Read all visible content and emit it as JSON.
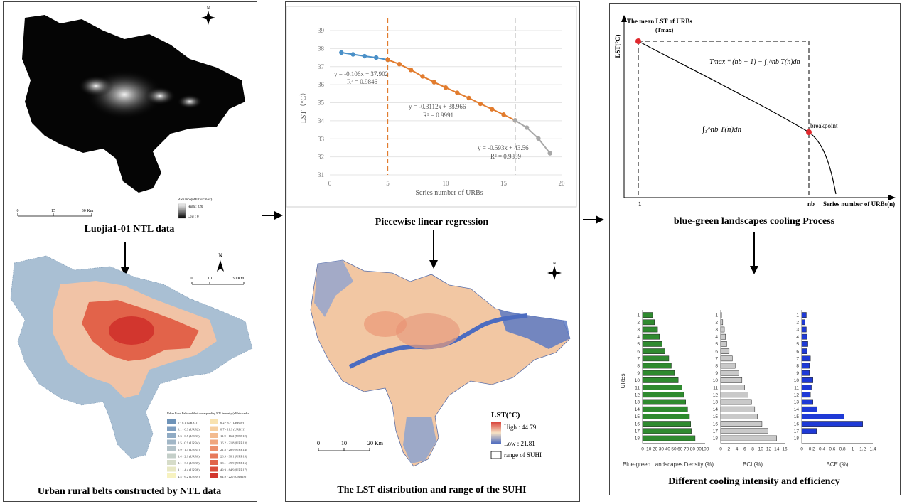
{
  "panel1": {
    "ntl_caption": "Luojia1-01 NTL data",
    "ntl_legend_title": "Radiance(nWatts/cm²sr)",
    "ntl_legend_high": "High : 220",
    "ntl_legend_low": "Low : 0",
    "ntl_scale_0": "0",
    "ntl_scale_1": "15",
    "ntl_scale_2": "30 Km",
    "belts_caption": "Urban rural belts constructed by NTL data",
    "belts_scale_0": "0",
    "belts_scale_1": "10",
    "belts_scale_2": "30 Km",
    "belts_legend_title": "Urban Rural Belts and their corresponding NTL intensity (nWatts/cm²sr)",
    "belts_legend_left": [
      "0 - 0.1 (URB1)",
      "0.1 - 0.3 (URB2)",
      "0.3 - 0.5 (URB3)",
      "0.5 - 0.9 (URB4)",
      "0.9 - 1.4 (URB5)",
      "1.4 - 2.1 (URB6)",
      "2.1 - 3.1 (URB7)",
      "3.1 - 4.4 (URB8)",
      "4.4 - 6.2 (URB9)"
    ],
    "belts_legend_right": [
      "6.2 - 8.7 (URB10)",
      "8.7 - 11.9 (URB11)",
      "11.9 - 16.2 (URB12)",
      "16.2 - 21.8 (URB13)",
      "21.8 - 28.9 (URB14)",
      "28.9 - 38.1 (URB15)",
      "38.1 - 49.9 (URB16)",
      "49.9 - 64.9 (URB17)",
      "64.9 - 220 (URB18)"
    ],
    "belts_legend_left_colors": [
      "#6e93b8",
      "#7f9fc0",
      "#90abc4",
      "#a1b6c6",
      "#b3c2c8",
      "#c4cfc9",
      "#d6dcc8",
      "#e8e8c4",
      "#f7f2c0"
    ],
    "belts_legend_right_colors": [
      "#f8e2b0",
      "#f6cfa0",
      "#f3bb8f",
      "#f0a67e",
      "#ec906c",
      "#e77a5b",
      "#e1634a",
      "#da4c3b",
      "#d2362e"
    ]
  },
  "panel2": {
    "regression_caption": "Piecewise linear regression",
    "lst_caption": "The LST distribution and range of the SUHI",
    "lst_legend_title": "LST(°C)",
    "lst_legend_high": "High : 44.79",
    "lst_legend_low": "Low : 21.81",
    "lst_legend_range": "range of SUHI",
    "lst_scale_0": "0",
    "lst_scale_1": "10",
    "lst_scale_2": "20 Km"
  },
  "panel3": {
    "process_caption": "blue-green landscapes cooling Process",
    "bars_caption": "Different cooling intensity and efficiency",
    "y_axis_title": "The mean LST of URBs",
    "y_axis_sub": "(Tmax)",
    "lst_axis_label": "LST(°C)",
    "x_axis_label": "Series number of URBs(n)",
    "x_tick_1": "1",
    "x_tick_nb": "nb",
    "breakpoint_label": "breakpoint",
    "formula_upper": "Tmax * (nb − 1) − ∫₁^nb T(n)dn",
    "formula_lower": "∫₁^nb T(n)dn"
  },
  "chart_data": [
    {
      "type": "scatter",
      "title": "",
      "xlabel": "Series number of URBs",
      "ylabel": "LST（°C）",
      "xlim": [
        0,
        20
      ],
      "ylim": [
        31,
        39
      ],
      "x_ticks": [
        0,
        5,
        10,
        15,
        20
      ],
      "y_ticks": [
        31,
        32,
        33,
        34,
        35,
        36,
        37,
        38,
        39
      ],
      "grid": true,
      "breakpoints": [
        5,
        16
      ],
      "series": [
        {
          "color": "#4a90c8",
          "x": [
            1,
            2,
            3,
            4,
            5
          ],
          "y": [
            37.78,
            37.68,
            37.58,
            37.5,
            37.38
          ]
        },
        {
          "color": "#e27c2e",
          "x": [
            5,
            6,
            7,
            8,
            9,
            10,
            11,
            12,
            13,
            14,
            15,
            16
          ],
          "y": [
            37.38,
            37.14,
            36.82,
            36.46,
            36.14,
            35.84,
            35.55,
            35.26,
            34.94,
            34.64,
            34.34,
            34.02
          ]
        },
        {
          "color": "#a8a8a8",
          "x": [
            16,
            17,
            18,
            19
          ],
          "y": [
            34.02,
            33.62,
            33.02,
            32.2
          ]
        }
      ],
      "annotations": [
        {
          "line1": "y = -0.106x + 37.902",
          "line2": "R² = 0.9846"
        },
        {
          "line1": "y = -0.3112x + 38.966",
          "line2": "R² = 0.9991"
        },
        {
          "line1": "y = -0.593x + 43.56",
          "line2": "R² = 0.9839"
        }
      ]
    },
    {
      "type": "bar",
      "orientation": "horizontal",
      "xlabel": "Blue-green Landscapes Density (%)",
      "ylabel": "URBs",
      "xlim": [
        0,
        100
      ],
      "x_ticks": [
        0,
        10,
        20,
        30,
        40,
        50,
        60,
        70,
        80,
        90,
        100
      ],
      "color": "#2f8a2f",
      "categories": [
        "1",
        "2",
        "3",
        "4",
        "5",
        "6",
        "7",
        "8",
        "9",
        "10",
        "11",
        "12",
        "13",
        "14",
        "15",
        "16",
        "17",
        "18"
      ],
      "values": [
        16,
        19,
        24,
        27,
        31,
        36,
        42,
        46,
        51,
        57,
        63,
        66,
        69,
        72,
        75,
        77,
        78,
        84
      ]
    },
    {
      "type": "bar",
      "orientation": "horizontal",
      "xlabel": "BCI (%)",
      "xlim": [
        0,
        16
      ],
      "x_ticks": [
        0,
        2,
        4,
        6,
        8,
        10,
        12,
        14,
        16
      ],
      "color": "#c9c9c9",
      "categories": [
        "1",
        "2",
        "3",
        "4",
        "5",
        "6",
        "7",
        "8",
        "9",
        "10",
        "11",
        "12",
        "13",
        "14",
        "15",
        "16",
        "17",
        "18"
      ],
      "values": [
        0.2,
        0.5,
        0.9,
        1.2,
        1.5,
        2.1,
        2.9,
        3.6,
        4.5,
        5.3,
        6.0,
        6.8,
        7.7,
        8.5,
        9.2,
        10.3,
        11.8,
        14.0
      ]
    },
    {
      "type": "bar",
      "orientation": "horizontal",
      "xlabel": "BCE (%)",
      "xlim": [
        0,
        1.4
      ],
      "x_ticks": [
        0,
        0.2,
        0.4,
        0.6,
        0.8,
        1,
        1.2,
        1.4
      ],
      "color": "#1f3ad6",
      "categories": [
        "1",
        "2",
        "3",
        "4",
        "5",
        "6",
        "7",
        "8",
        "9",
        "10",
        "11",
        "12",
        "13",
        "14",
        "15",
        "16",
        "17",
        "18"
      ],
      "values": [
        0.09,
        0.06,
        0.09,
        0.1,
        0.12,
        0.1,
        0.17,
        0.15,
        0.15,
        0.22,
        0.19,
        0.17,
        0.22,
        0.3,
        0.83,
        1.2,
        0.29,
        0.0
      ]
    }
  ]
}
